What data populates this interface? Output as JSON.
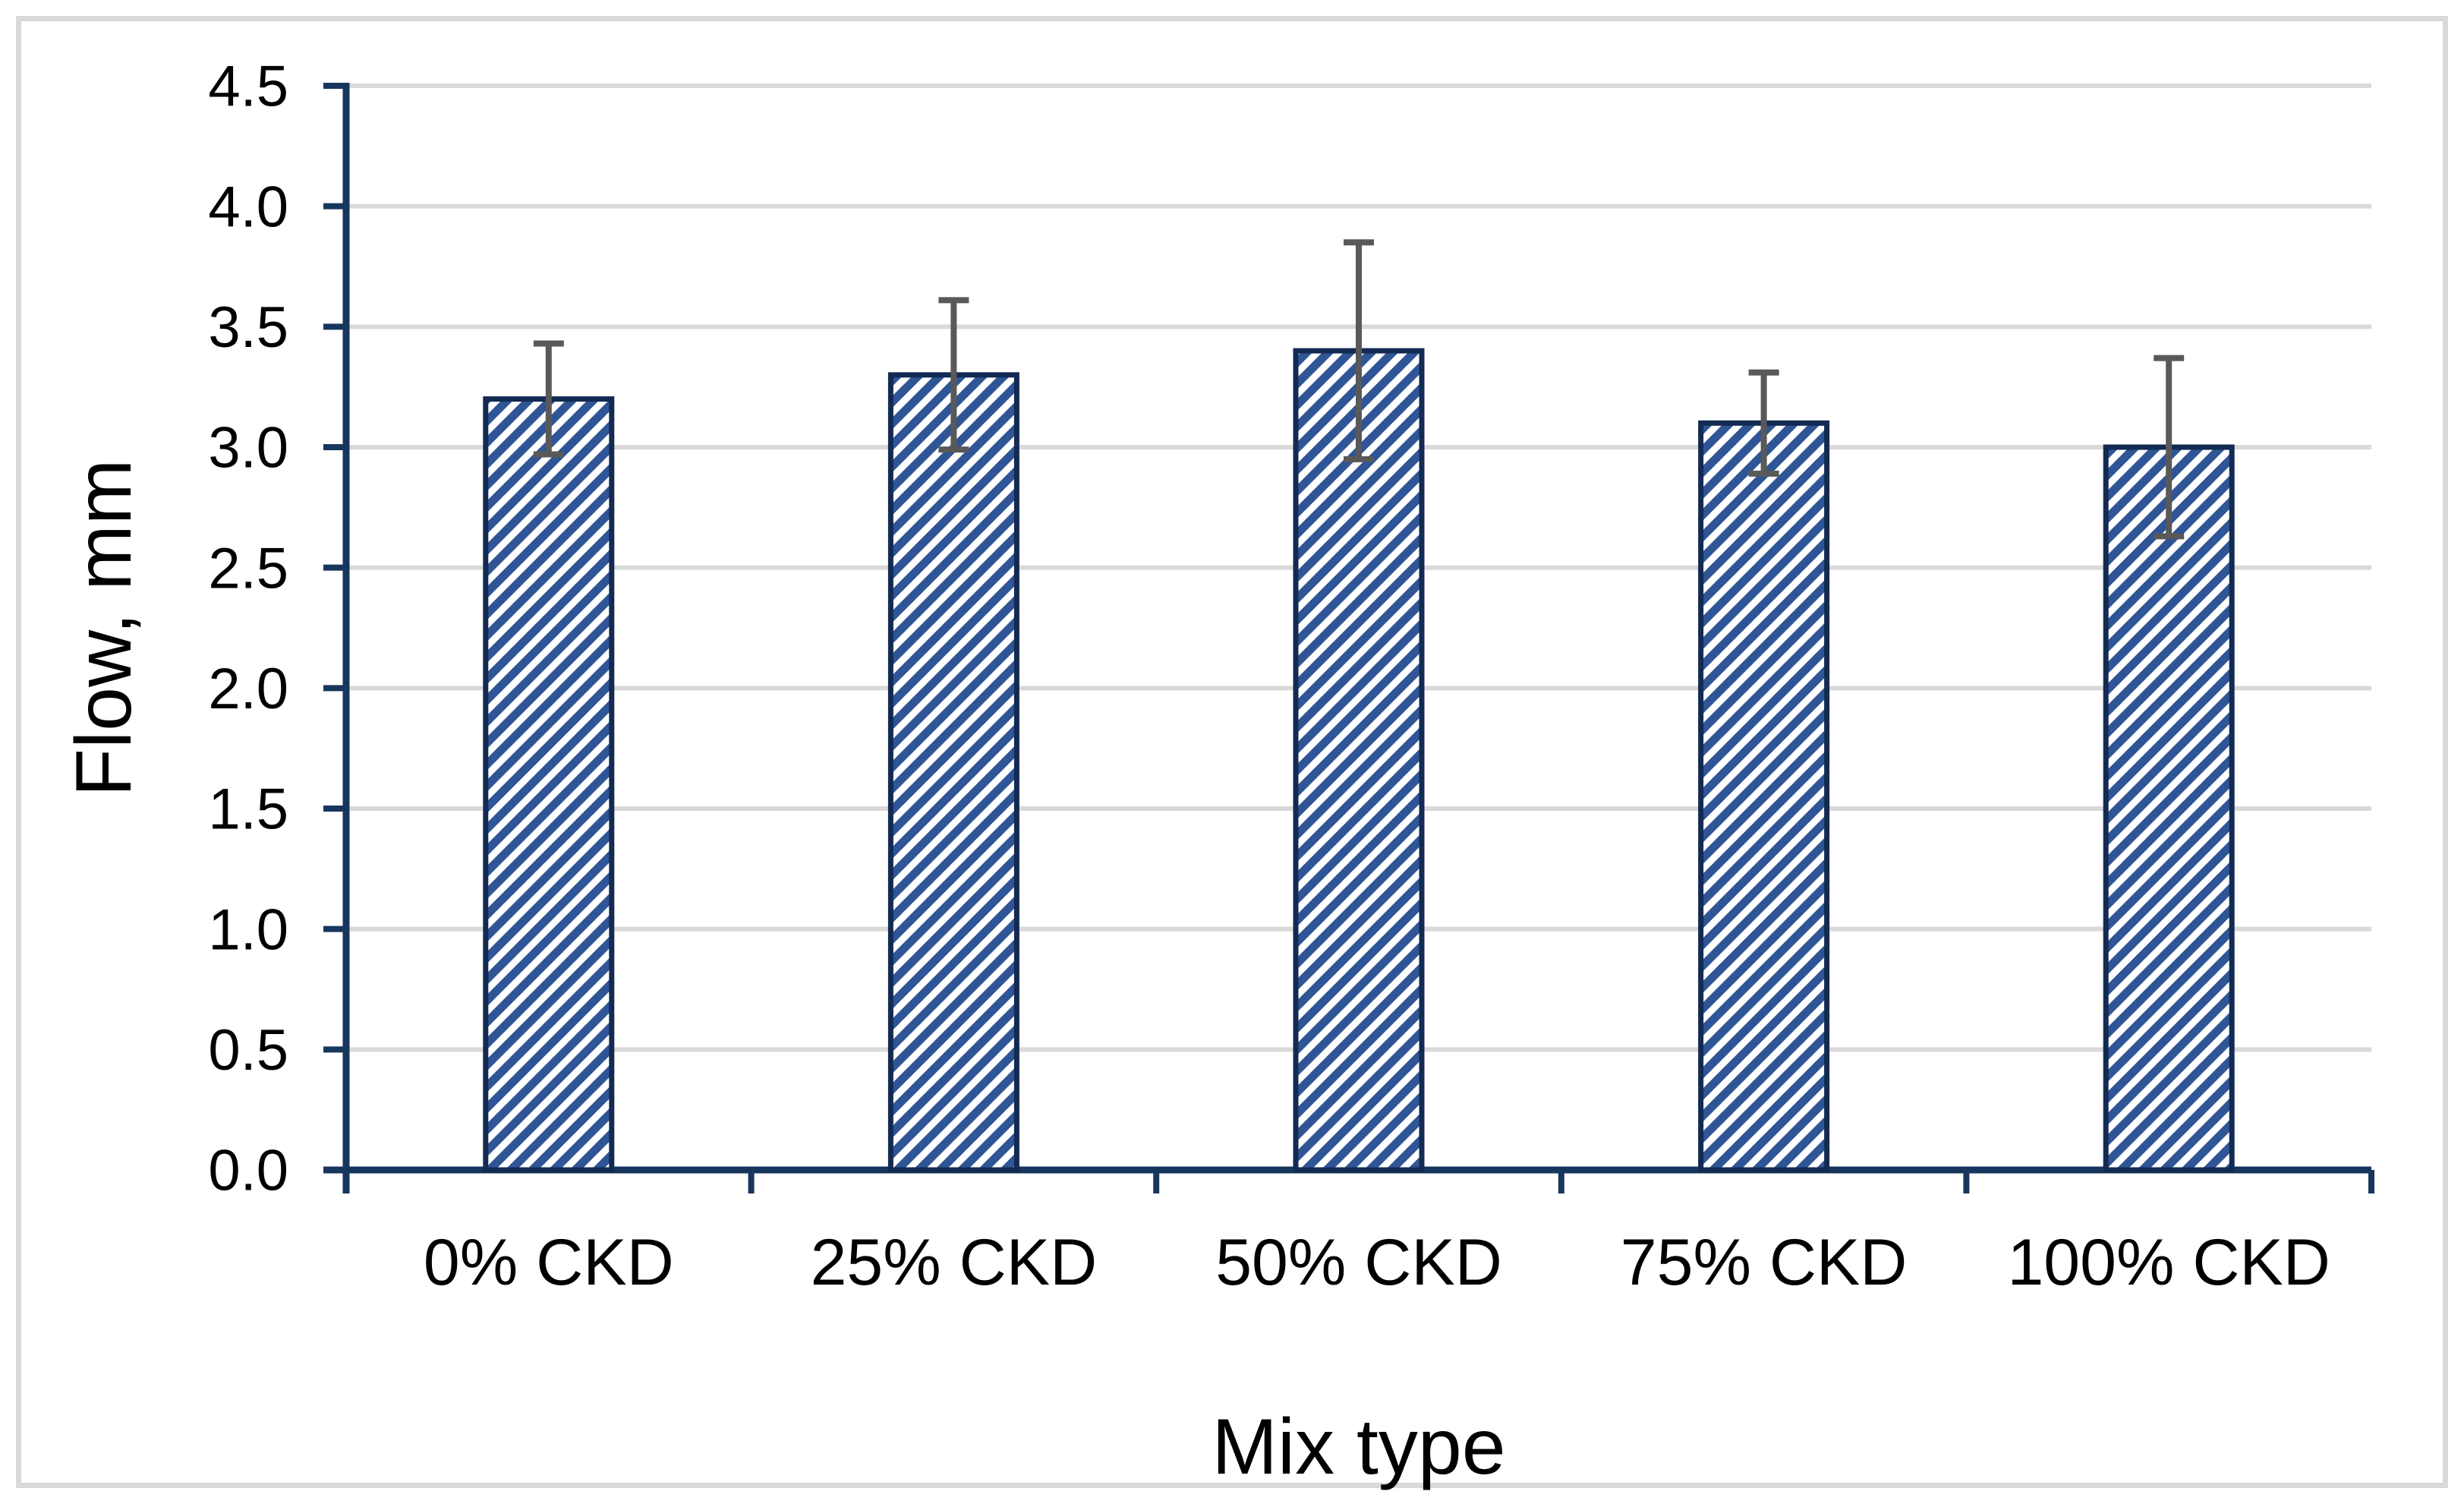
{
  "figure": {
    "background": "#ffffff",
    "border_color": "#d9d9d9"
  },
  "chart_data": {
    "type": "bar",
    "title": "",
    "categories": [
      "0% CKD",
      "25% CKD",
      "50% CKD",
      "75% CKD",
      "100% CKD"
    ],
    "values": [
      3.2,
      3.3,
      3.4,
      3.1,
      3.0
    ],
    "error_bars": {
      "plus": [
        0.23,
        0.31,
        0.45,
        0.21,
        0.37
      ],
      "minus": [
        0.23,
        0.31,
        0.45,
        0.21,
        0.37
      ]
    },
    "xlabel": "Mix type",
    "ylabel": "Flow, mm",
    "ylim": [
      0,
      4.5
    ],
    "ytick_step": 0.5,
    "ytick_labels": [
      "0.0",
      "0.5",
      "1.0",
      "1.5",
      "2.0",
      "2.5",
      "3.0",
      "3.5",
      "4.0",
      "4.5"
    ],
    "grid": true,
    "legend": "none",
    "bar_fill_pattern": "diagonal-hatch-up",
    "colors": {
      "bar_stripe": "#2f5597",
      "bar_background": "#ffffff",
      "bar_border": "#132a52",
      "axis": "#17365d",
      "gridline": "#d9d9d9",
      "error_bar": "#595959",
      "text": "#000000"
    }
  }
}
